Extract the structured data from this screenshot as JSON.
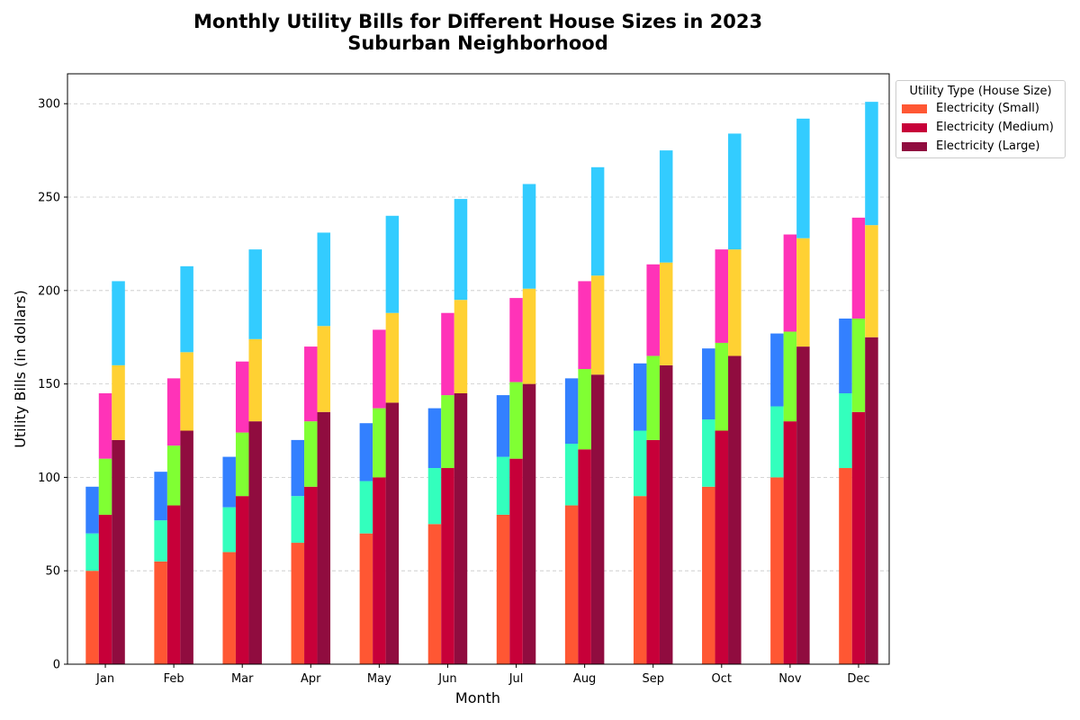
{
  "title_line1": "Monthly Utility Bills for Different House Sizes in 2023",
  "title_line2": "Suburban Neighborhood",
  "chart_data": {
    "type": "bar",
    "stacked": true,
    "grouped": true,
    "xlabel": "Month",
    "ylabel": "Utility Bills (in dollars)",
    "ylim": [
      0,
      316
    ],
    "yticks": [
      0,
      50,
      100,
      150,
      200,
      250,
      300
    ],
    "grid": "horizontal dashed",
    "legend": {
      "title": "Utility Type (House Size)",
      "placement": "outside top-right",
      "entries": [
        "Electricity (Small)",
        "Electricity (Medium)",
        "Electricity (Large)"
      ]
    },
    "categories": [
      "Jan",
      "Feb",
      "Mar",
      "Apr",
      "May",
      "Jun",
      "Jul",
      "Aug",
      "Sep",
      "Oct",
      "Nov",
      "Dec"
    ],
    "groups": [
      {
        "house_size": "Small",
        "segments": [
          {
            "color": "#ff5733",
            "values": [
              50,
              55,
              60,
              65,
              70,
              75,
              80,
              85,
              90,
              95,
              100,
              105
            ]
          },
          {
            "color": "#33ffbd",
            "values": [
              20,
              22,
              24,
              25,
              28,
              30,
              31,
              33,
              35,
              36,
              38,
              40
            ]
          },
          {
            "color": "#3380ff",
            "values": [
              25,
              26,
              27,
              30,
              31,
              32,
              33,
              35,
              36,
              38,
              39,
              40
            ]
          }
        ]
      },
      {
        "house_size": "Medium",
        "segments": [
          {
            "color": "#c70039",
            "values": [
              80,
              85,
              90,
              95,
              100,
              105,
              110,
              115,
              120,
              125,
              130,
              135
            ]
          },
          {
            "color": "#80ff33",
            "values": [
              30,
              32,
              34,
              35,
              37,
              39,
              41,
              43,
              45,
              47,
              48,
              50
            ]
          },
          {
            "color": "#ff33b8",
            "values": [
              35,
              36,
              38,
              40,
              42,
              44,
              45,
              47,
              49,
              50,
              52,
              54
            ]
          }
        ]
      },
      {
        "house_size": "Large",
        "segments": [
          {
            "color": "#900c3f",
            "values": [
              120,
              125,
              130,
              135,
              140,
              145,
              150,
              155,
              160,
              165,
              170,
              175
            ]
          },
          {
            "color": "#ffd133",
            "values": [
              40,
              42,
              44,
              46,
              48,
              50,
              51,
              53,
              55,
              57,
              58,
              60
            ]
          },
          {
            "color": "#33ccff",
            "values": [
              45,
              46,
              48,
              50,
              52,
              54,
              56,
              58,
              60,
              62,
              64,
              66
            ]
          }
        ]
      }
    ]
  }
}
